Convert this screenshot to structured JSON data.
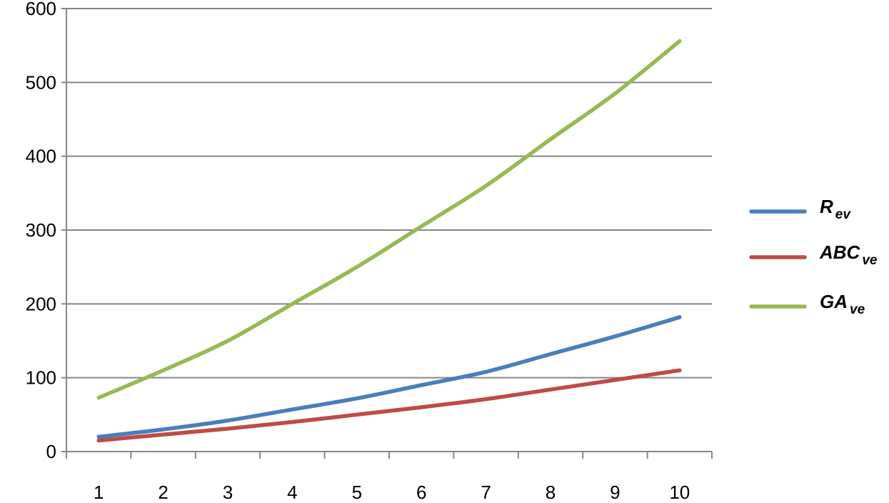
{
  "chart_data": {
    "type": "line",
    "categories": [
      "1",
      "2",
      "3",
      "4",
      "5",
      "6",
      "7",
      "8",
      "9",
      "10"
    ],
    "ylim": [
      0,
      600
    ],
    "yticks": [
      0,
      100,
      200,
      300,
      400,
      500,
      600
    ],
    "grid": true,
    "legend_position": "right",
    "series": [
      {
        "name_main": "R",
        "name_sub": "ev",
        "color": "#4a7ebb",
        "values": [
          20,
          30,
          42,
          57,
          72,
          90,
          108,
          132,
          156,
          182
        ]
      },
      {
        "name_main": "ABC",
        "name_sub": "ve",
        "color": "#be4b48",
        "values": [
          15,
          23,
          31,
          40,
          50,
          60,
          71,
          84,
          97,
          110
        ]
      },
      {
        "name_main": "GA",
        "name_sub": "ve",
        "color": "#98b954",
        "values": [
          73,
          110,
          150,
          200,
          250,
          305,
          360,
          423,
          485,
          556
        ]
      }
    ]
  }
}
